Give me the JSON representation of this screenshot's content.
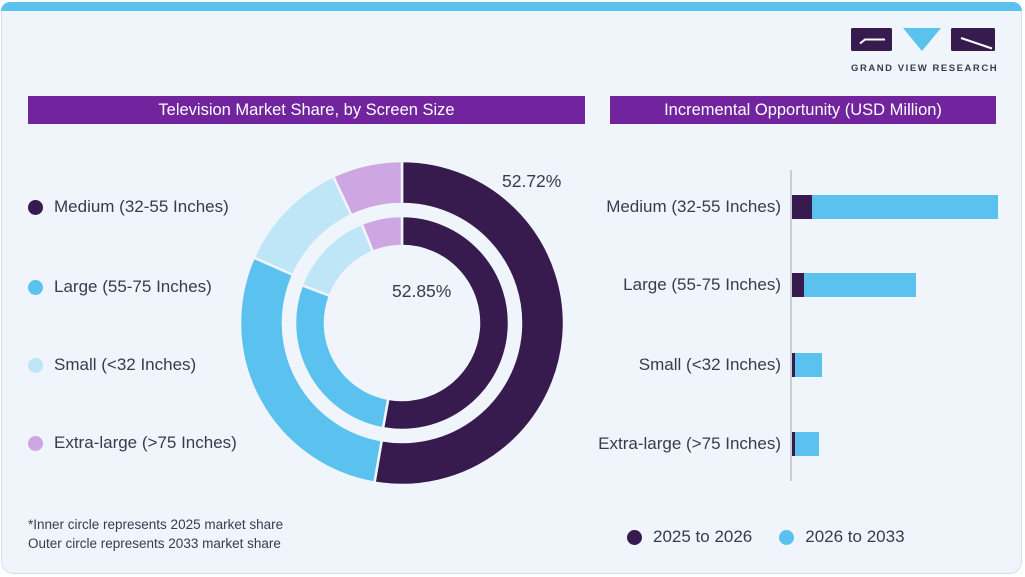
{
  "brand": {
    "logo_text": "GRAND VIEW RESEARCH"
  },
  "titles": {
    "left": "Television Market Share, by Screen Size",
    "right": "Incremental Opportunity (USD Million)"
  },
  "colors": {
    "accent_strip": "#5bc2ee",
    "title_bar": "#71249e",
    "card_bg": "#eff5fa",
    "dark_purple": "#371a4e",
    "blue": "#5bc2ef",
    "pale_blue": "#bfe6f7",
    "lavender": "#cda6e2",
    "text": "#3a3a4e",
    "axis": "#c9cdd4"
  },
  "donut_labels": {
    "outer": "52.72%",
    "inner": "52.85%"
  },
  "footnote": {
    "line1": "*Inner circle represents 2025 market share",
    "line2": "Outer circle represents 2033 market share"
  },
  "bar_legend": [
    {
      "label": "2025 to 2026",
      "color": "#371a4e"
    },
    {
      "label": "2026 to 2033",
      "color": "#5bc2ef"
    }
  ],
  "chart_data": [
    {
      "type": "pie",
      "subtype": "double-ring-donut",
      "title": "Television Market Share, by Screen Size",
      "categories": [
        "Medium (32-55 Inches)",
        "Large (55-75 Inches)",
        "Small (<32 Inches)",
        "Extra-large (>75 Inches)"
      ],
      "colors": [
        "#371a4e",
        "#5bc2ef",
        "#bfe6f7",
        "#cda6e2"
      ],
      "series": [
        {
          "name": "2025 market share (inner circle)",
          "values": [
            52.85,
            27.9,
            13.1,
            6.15
          ]
        },
        {
          "name": "2033 market share (outer circle)",
          "values": [
            52.72,
            28.9,
            11.4,
            6.98
          ]
        }
      ],
      "shown_labels": {
        "outer_ring": "52.72%",
        "inner_ring": "52.85%"
      },
      "start_angle_deg": 0,
      "direction": "clockwise",
      "note": "Only the Medium segment is labeled in the image; other segment values are estimated from arc angles"
    },
    {
      "type": "bar",
      "orientation": "horizontal",
      "stacked": true,
      "title": "Incremental Opportunity (USD Million)",
      "categories": [
        "Medium (32-55 Inches)",
        "Large (55-75 Inches)",
        "Small (<32 Inches)",
        "Extra-large (>75 Inches)"
      ],
      "series": [
        {
          "name": "2025 to 2026",
          "color": "#371a4e",
          "values": [
            20,
            12,
            3,
            3
          ]
        },
        {
          "name": "2026 to 2033",
          "color": "#5bc2ef",
          "values": [
            186,
            112,
            27,
            24
          ]
        }
      ],
      "value_axis": "no numeric tick labels shown; values are relative bar lengths",
      "legend_position": "bottom",
      "grid": false
    }
  ]
}
